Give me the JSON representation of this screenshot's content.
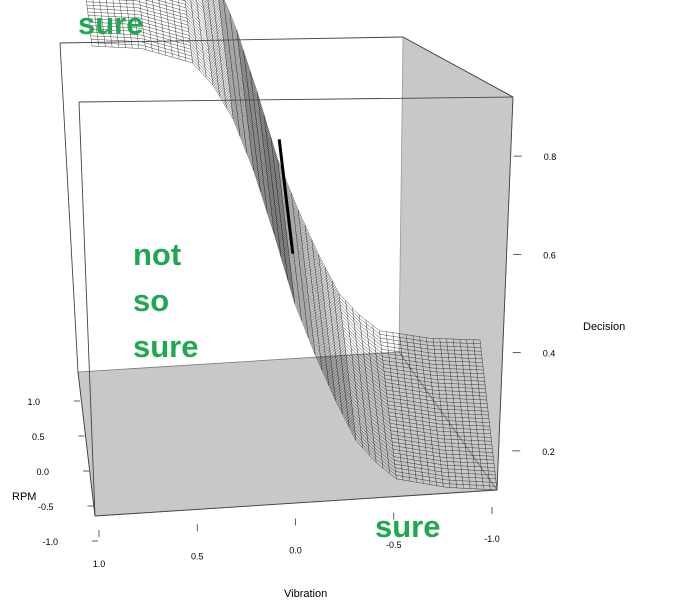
{
  "chart_data": {
    "type": "surface",
    "title": "",
    "xlabel": "Vibration",
    "ylabel": "RPM",
    "zlabel": "Decision",
    "xlim": [
      -1.0,
      1.0
    ],
    "ylim": [
      -1.0,
      1.0
    ],
    "zlim": [
      0.1,
      0.9
    ],
    "x_ticks": [
      "1.0",
      "0.5",
      "0.0",
      "-0.5",
      "-1.0"
    ],
    "y_ticks": [
      "1.0",
      "0.5",
      "0.0",
      "-0.5",
      "-1.0"
    ],
    "z_ticks": [
      "0.8",
      "0.6",
      "0.4",
      "0.2"
    ],
    "surface": {
      "function": "logistic over Vibration",
      "x": [
        1.0,
        0.75,
        0.5,
        0.4,
        0.3,
        0.2,
        0.1,
        0.0,
        -0.1,
        -0.2,
        -0.3,
        -0.4,
        -0.5,
        -0.75,
        -1.0
      ],
      "z": [
        0.9,
        0.89,
        0.86,
        0.82,
        0.76,
        0.67,
        0.56,
        0.44,
        0.35,
        0.27,
        0.2,
        0.16,
        0.13,
        0.11,
        0.1
      ]
    },
    "decision_boundary": {
      "x": 0.0,
      "z": 0.5
    },
    "grid": false,
    "colors": {
      "mesh": "#000000",
      "wall": "#c8c8c8",
      "floor": "#c8c8c8",
      "annotation": "#1fa84f"
    }
  },
  "annotations": {
    "top": "sure",
    "middle_1": "not",
    "middle_2": "so",
    "middle_3": "sure",
    "bottom": "sure"
  }
}
